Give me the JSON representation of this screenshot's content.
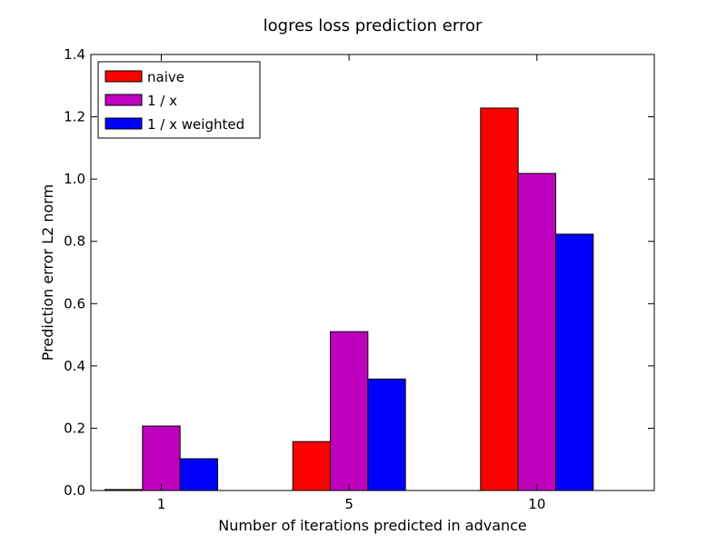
{
  "chart_data": {
    "type": "bar",
    "title": "logres loss prediction error",
    "xlabel": "Number of iterations predicted in advance",
    "ylabel": "Prediction error L2 norm",
    "categories": [
      "1",
      "5",
      "10"
    ],
    "series": [
      {
        "name": "naive",
        "color": "#ff0000",
        "values": [
          0.003,
          0.157,
          1.228
        ]
      },
      {
        "name": "1 / x",
        "color": "#bf00bf",
        "values": [
          0.207,
          0.51,
          1.018
        ]
      },
      {
        "name": "1 / x weighted",
        "color": "#0000ff",
        "values": [
          0.102,
          0.358,
          0.823
        ]
      }
    ],
    "ylim": [
      0.0,
      1.4
    ],
    "yticks": [
      "0.0",
      "0.2",
      "0.4",
      "0.6",
      "0.8",
      "1.0",
      "1.2",
      "1.4"
    ],
    "legend_position": "top-left",
    "grid": false
  }
}
